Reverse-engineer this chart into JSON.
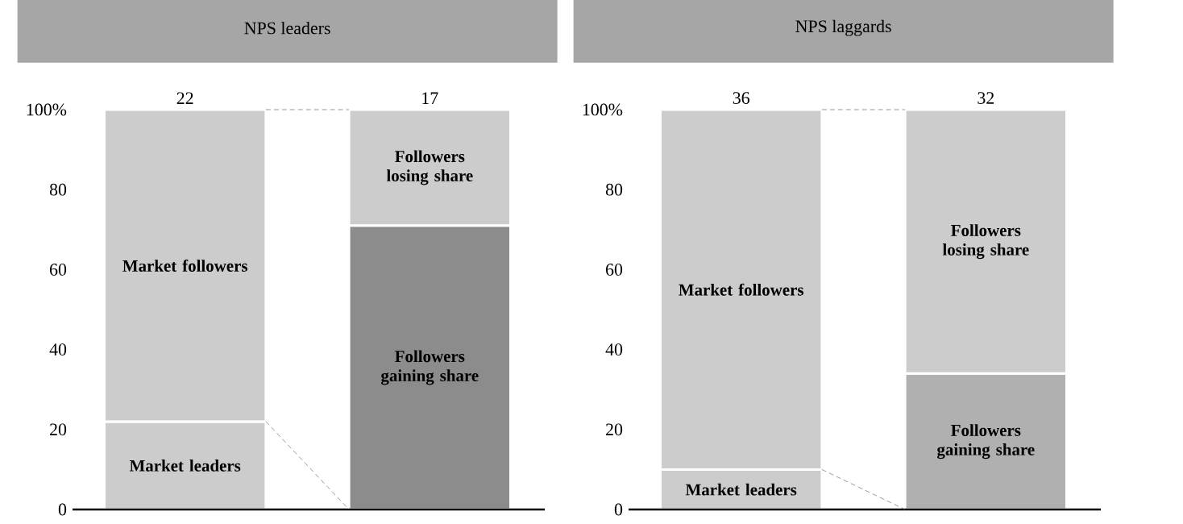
{
  "chart_data": [
    {
      "type": "bar",
      "title": "NPS leaders",
      "categories": [
        null,
        null
      ],
      "stacked": true,
      "series": [
        {
          "name": "Market leaders",
          "color": "#cccccc",
          "values": [
            22,
            null
          ]
        },
        {
          "name": "Market followers",
          "color": "#cccccc",
          "values": [
            78,
            null
          ]
        },
        {
          "name": "Followers gaining share",
          "color": "#8c8c8c",
          "values": [
            null,
            71
          ]
        },
        {
          "name": "Followers losing share",
          "color": "#cccccc",
          "values": [
            null,
            29
          ]
        }
      ],
      "ylim": [
        0,
        100
      ],
      "yticks": [
        0,
        20,
        40,
        60,
        80,
        {
          "value": 100,
          "label": "100%"
        }
      ],
      "annotations": [
        "22",
        "17"
      ]
    },
    {
      "type": "bar",
      "title": "NPS laggards",
      "categories": [
        null,
        null
      ],
      "stacked": true,
      "series": [
        {
          "name": "Market leaders",
          "color": "#cccccc",
          "values": [
            10,
            null
          ]
        },
        {
          "name": "Market followers",
          "color": "#cccccc",
          "values": [
            90,
            null
          ]
        },
        {
          "name": "Followers gaining share",
          "color": "#b0b0b0",
          "values": [
            null,
            34
          ]
        },
        {
          "name": "Followers losing share",
          "color": "#cccccc",
          "values": [
            null,
            66
          ]
        }
      ],
      "ylim": [
        0,
        100
      ],
      "yticks": [
        0,
        20,
        40,
        60,
        80,
        {
          "value": 100,
          "label": "100%"
        }
      ],
      "annotations": [
        "36",
        "32"
      ]
    }
  ]
}
